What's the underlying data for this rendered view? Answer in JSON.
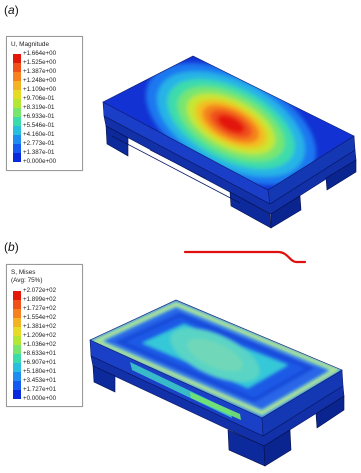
{
  "panel_a": {
    "label_open": "(",
    "label_letter": "a",
    "label_close": ")",
    "legend": {
      "title_lines": [
        "U, Magnitude"
      ],
      "values": [
        "+1.664e+00",
        "+1.525e+00",
        "+1.387e+00",
        "+1.248e+00",
        "+1.109e+00",
        "+9.706e-01",
        "+8.319e-01",
        "+6.933e-01",
        "+5.546e-01",
        "+4.160e-01",
        "+2.773e-01",
        "+1.387e-01",
        "+0.000e+00"
      ],
      "colors": [
        "#e3170a",
        "#f0501a",
        "#f5821e",
        "#f2b424",
        "#e6dc28",
        "#b4e636",
        "#78e66e",
        "#3cdcaa",
        "#28bede",
        "#1e8cf0",
        "#145af0",
        "#0a28dc"
      ]
    }
  },
  "panel_b": {
    "label_open": "(",
    "label_letter": "b",
    "label_close": ")",
    "legend": {
      "title_lines": [
        "S, Mises",
        "(Avg: 75%)"
      ],
      "values": [
        "+2.072e+02",
        "+1.899e+02",
        "+1.727e+02",
        "+1.554e+02",
        "+1.381e+02",
        "+1.209e+02",
        "+1.036e+02",
        "+8.633e+01",
        "+6.907e+01",
        "+5.180e+01",
        "+3.453e+01",
        "+1.727e+01",
        "+0.000e+00"
      ],
      "colors": [
        "#e3170a",
        "#f0501a",
        "#f5821e",
        "#f2b424",
        "#e6dc28",
        "#b4e636",
        "#78e66e",
        "#3cdcaa",
        "#28bede",
        "#1e8cf0",
        "#145af0",
        "#0a28dc"
      ]
    }
  },
  "annotation_color": "#e01010"
}
